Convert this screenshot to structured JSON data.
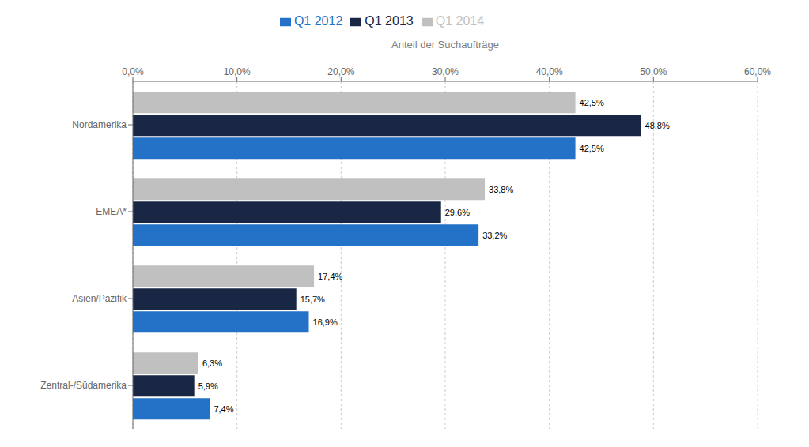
{
  "chart_data": {
    "type": "bar",
    "orientation": "horizontal",
    "xlabel": "Anteil der Suchaufträge",
    "categories": [
      "Nordamerika",
      "EMEA*",
      "Asien/Pazifik",
      "Zentral-/Südamerika"
    ],
    "series": [
      {
        "name": "Q1 2014",
        "color": "#c0c0c0",
        "values": [
          42.5,
          33.8,
          17.4,
          6.3
        ],
        "value_labels": [
          "42,5%",
          "33,8%",
          "17,4%",
          "6,3%"
        ]
      },
      {
        "name": "Q1 2013",
        "color": "#1a2744",
        "values": [
          48.8,
          29.6,
          15.7,
          5.9
        ],
        "value_labels": [
          "48,8%",
          "29,6%",
          "15,7%",
          "5,9%"
        ]
      },
      {
        "name": "Q1 2012",
        "color": "#2472c8",
        "values": [
          42.5,
          33.2,
          16.9,
          7.4
        ],
        "value_labels": [
          "42,5%",
          "33,2%",
          "16,9%",
          "7,4%"
        ]
      }
    ],
    "xlim": [
      0,
      60
    ],
    "xticks": [
      {
        "value": 0,
        "label": "0,0%"
      },
      {
        "value": 10,
        "label": "10,0%"
      },
      {
        "value": 20,
        "label": "20,0%"
      },
      {
        "value": 30,
        "label": "30,0%"
      },
      {
        "value": 40,
        "label": "40,0%"
      },
      {
        "value": 50,
        "label": "50,0%"
      },
      {
        "value": 60,
        "label": "60,0%"
      }
    ],
    "grid": true,
    "data_labels": true
  }
}
